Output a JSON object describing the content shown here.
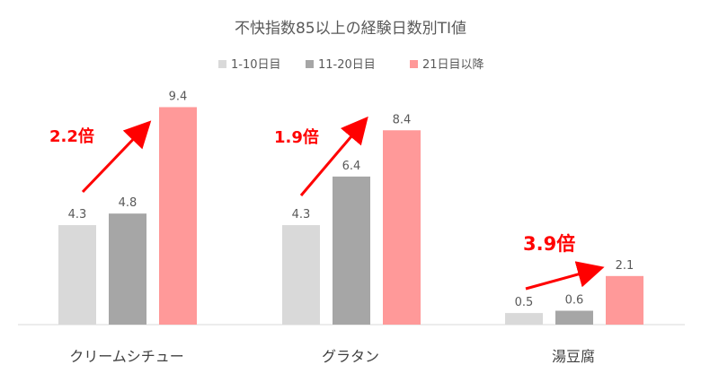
{
  "chart_data": {
    "type": "bar",
    "title": "不快指数85以上の経験日数別TI値",
    "xlabel": "",
    "ylabel": "",
    "ylim": [
      0,
      10
    ],
    "grid": false,
    "legend_position": "top",
    "categories": [
      "クリームシチュー",
      "グラタン",
      "湯豆腐"
    ],
    "series": [
      {
        "name": "1-10日目",
        "color": "#d9d9d9",
        "values": [
          4.3,
          4.3,
          0.5
        ]
      },
      {
        "name": "11-20日目",
        "color": "#a6a6a6",
        "values": [
          4.8,
          6.4,
          0.6
        ]
      },
      {
        "name": "21日目以降",
        "color": "#ff9999",
        "values": [
          9.4,
          8.4,
          2.1
        ]
      }
    ],
    "annotations": [
      {
        "category": "クリームシチュー",
        "text": "2.2倍",
        "color": "#ff0000"
      },
      {
        "category": "グラタン",
        "text": "1.9倍",
        "color": "#ff0000"
      },
      {
        "category": "湯豆腐",
        "text": "3.9倍",
        "color": "#ff0000"
      }
    ]
  }
}
